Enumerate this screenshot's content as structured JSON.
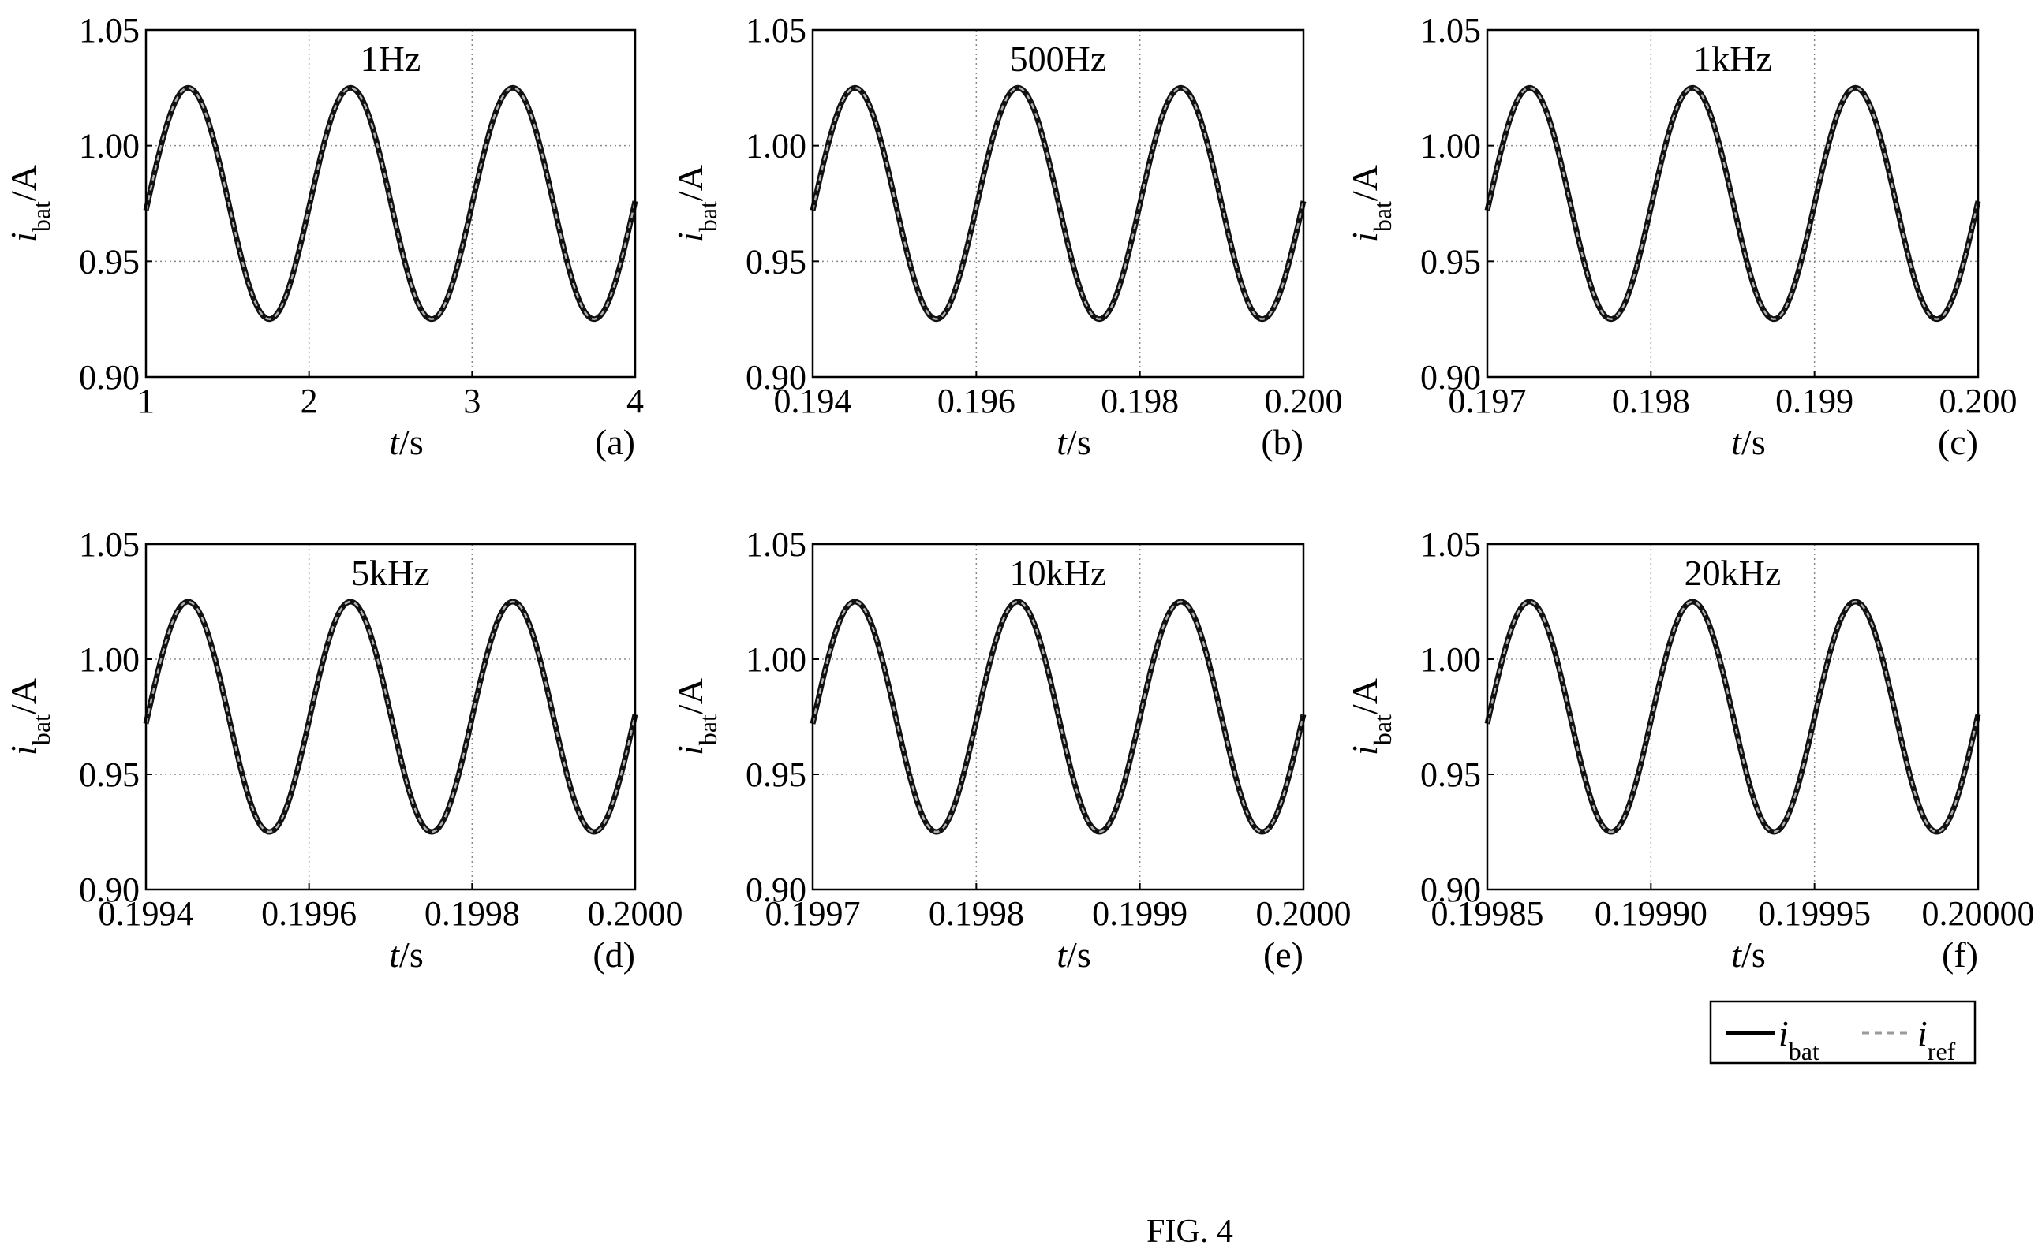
{
  "figure": {
    "caption": "FIG. 4"
  },
  "legend": {
    "series": [
      {
        "name": "i",
        "sub": "bat",
        "style": "solid",
        "color": "#000000"
      },
      {
        "name": "i",
        "sub": "ref",
        "style": "dashed",
        "color": "#9a9a9a"
      }
    ]
  },
  "chart_data": [
    {
      "type": "line",
      "panel": "(a)",
      "annotation": "1Hz",
      "xlabel": {
        "main": "t",
        "unit": "/s"
      },
      "ylabel": {
        "main": "i",
        "sub": "bat",
        "unit": "/A"
      },
      "xlim": [
        1,
        4
      ],
      "ylim": [
        0.9,
        1.05
      ],
      "xticks": [
        1,
        2,
        3,
        4
      ],
      "xtick_labels": [
        "1",
        "2",
        "3",
        "4"
      ],
      "yticks": [
        0.9,
        0.95,
        1.0,
        1.05
      ],
      "ytick_labels": [
        "0.90",
        "0.95",
        "1.00",
        "1.05"
      ],
      "grid": true,
      "series": [
        {
          "name": "i_bat",
          "mean": 0.975,
          "amplitude": 0.05,
          "cycles": 3,
          "start_value": 0.972,
          "end_value": 0.976
        },
        {
          "name": "i_ref",
          "mean": 0.975,
          "amplitude": 0.05,
          "cycles": 3,
          "start_value": 0.972,
          "end_value": 0.976
        }
      ]
    },
    {
      "type": "line",
      "panel": "(b)",
      "annotation": "500Hz",
      "xlabel": {
        "main": "t",
        "unit": "/s"
      },
      "ylabel": {
        "main": "i",
        "sub": "bat",
        "unit": "/A"
      },
      "xlim": [
        0.194,
        0.2
      ],
      "ylim": [
        0.9,
        1.05
      ],
      "xticks": [
        0.194,
        0.196,
        0.198,
        0.2
      ],
      "xtick_labels": [
        "0.194",
        "0.196",
        "0.198",
        "0.200"
      ],
      "yticks": [
        0.9,
        0.95,
        1.0,
        1.05
      ],
      "ytick_labels": [
        "0.90",
        "0.95",
        "1.00",
        "1.05"
      ],
      "grid": true,
      "series": [
        {
          "name": "i_bat",
          "mean": 0.975,
          "amplitude": 0.05,
          "cycles": 3,
          "start_value": 0.972,
          "end_value": 0.976
        },
        {
          "name": "i_ref",
          "mean": 0.975,
          "amplitude": 0.05,
          "cycles": 3,
          "start_value": 0.972,
          "end_value": 0.976
        }
      ]
    },
    {
      "type": "line",
      "panel": "(c)",
      "annotation": "1kHz",
      "xlabel": {
        "main": "t",
        "unit": "/s"
      },
      "ylabel": {
        "main": "i",
        "sub": "bat",
        "unit": "/A"
      },
      "xlim": [
        0.197,
        0.2
      ],
      "ylim": [
        0.9,
        1.05
      ],
      "xticks": [
        0.197,
        0.198,
        0.199,
        0.2
      ],
      "xtick_labels": [
        "0.197",
        "0.198",
        "0.199",
        "0.200"
      ],
      "yticks": [
        0.9,
        0.95,
        1.0,
        1.05
      ],
      "ytick_labels": [
        "0.90",
        "0.95",
        "1.00",
        "1.05"
      ],
      "grid": true,
      "series": [
        {
          "name": "i_bat",
          "mean": 0.975,
          "amplitude": 0.05,
          "cycles": 3,
          "start_value": 0.972,
          "end_value": 0.976
        },
        {
          "name": "i_ref",
          "mean": 0.975,
          "amplitude": 0.05,
          "cycles": 3,
          "start_value": 0.972,
          "end_value": 0.976
        }
      ]
    },
    {
      "type": "line",
      "panel": "(d)",
      "annotation": "5kHz",
      "xlabel": {
        "main": "t",
        "unit": "/s"
      },
      "ylabel": {
        "main": "i",
        "sub": "bat",
        "unit": "/A"
      },
      "xlim": [
        0.1994,
        0.2
      ],
      "ylim": [
        0.9,
        1.05
      ],
      "xticks": [
        0.1994,
        0.1996,
        0.1998,
        0.2
      ],
      "xtick_labels": [
        "0.1994",
        "0.1996",
        "0.1998",
        "0.2000"
      ],
      "yticks": [
        0.9,
        0.95,
        1.0,
        1.05
      ],
      "ytick_labels": [
        "0.90",
        "0.95",
        "1.00",
        "1.05"
      ],
      "grid": true,
      "series": [
        {
          "name": "i_bat",
          "mean": 0.975,
          "amplitude": 0.05,
          "cycles": 3,
          "start_value": 0.972,
          "end_value": 0.976
        },
        {
          "name": "i_ref",
          "mean": 0.975,
          "amplitude": 0.05,
          "cycles": 3,
          "start_value": 0.972,
          "end_value": 0.976
        }
      ]
    },
    {
      "type": "line",
      "panel": "(e)",
      "annotation": "10kHz",
      "xlabel": {
        "main": "t",
        "unit": "/s"
      },
      "ylabel": {
        "main": "i",
        "sub": "bat",
        "unit": "/A"
      },
      "xlim": [
        0.1997,
        0.2
      ],
      "ylim": [
        0.9,
        1.05
      ],
      "xticks": [
        0.1997,
        0.1998,
        0.1999,
        0.2
      ],
      "xtick_labels": [
        "0.1997",
        "0.1998",
        "0.1999",
        "0.2000"
      ],
      "yticks": [
        0.9,
        0.95,
        1.0,
        1.05
      ],
      "ytick_labels": [
        "0.90",
        "0.95",
        "1.00",
        "1.05"
      ],
      "grid": true,
      "series": [
        {
          "name": "i_bat",
          "mean": 0.975,
          "amplitude": 0.05,
          "cycles": 3,
          "start_value": 0.972,
          "end_value": 0.976
        },
        {
          "name": "i_ref",
          "mean": 0.975,
          "amplitude": 0.05,
          "cycles": 3,
          "start_value": 0.972,
          "end_value": 0.976
        }
      ]
    },
    {
      "type": "line",
      "panel": "(f)",
      "annotation": "20kHz",
      "xlabel": {
        "main": "t",
        "unit": "/s"
      },
      "ylabel": {
        "main": "i",
        "sub": "bat",
        "unit": "/A"
      },
      "xlim": [
        0.19985,
        0.2
      ],
      "ylim": [
        0.9,
        1.05
      ],
      "xticks": [
        0.19985,
        0.1999,
        0.19995,
        0.2
      ],
      "xtick_labels": [
        "0.19985",
        "0.19990",
        "0.19995",
        "0.20000"
      ],
      "yticks": [
        0.9,
        0.95,
        1.0,
        1.05
      ],
      "ytick_labels": [
        "0.90",
        "0.95",
        "1.00",
        "1.05"
      ],
      "grid": true,
      "series": [
        {
          "name": "i_bat",
          "mean": 0.975,
          "amplitude": 0.05,
          "cycles": 3,
          "start_value": 0.972,
          "end_value": 0.976
        },
        {
          "name": "i_ref",
          "mean": 0.975,
          "amplitude": 0.05,
          "cycles": 3,
          "start_value": 0.972,
          "end_value": 0.976
        }
      ]
    }
  ]
}
